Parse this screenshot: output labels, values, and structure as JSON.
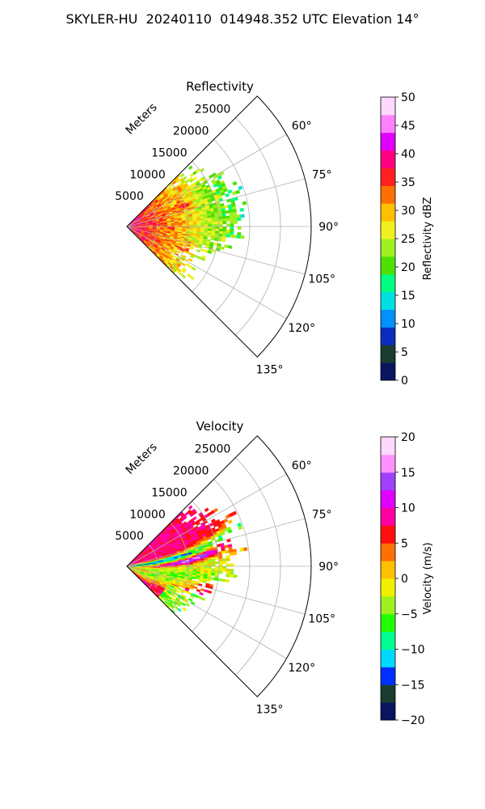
{
  "figure": {
    "suptitle": "SKYLER-HU  20240110  014948.352 UTC Elevation 14°"
  },
  "chart_data": [
    {
      "type": "heatmap",
      "title": "Reflectivity",
      "radial_axis_label": "Meters",
      "radial_ticks": [
        "5000",
        "10000",
        "15000",
        "20000",
        "25000"
      ],
      "radial_tick_values": [
        5000,
        10000,
        15000,
        20000,
        25000
      ],
      "rlim": [
        0,
        30000
      ],
      "angular_ticks": [
        "60°",
        "75°",
        "90°",
        "105°",
        "120°",
        "135°"
      ],
      "angular_tick_values": [
        60,
        75,
        90,
        105,
        120,
        135
      ],
      "theta_range_deg": [
        45,
        135
      ],
      "grid": true,
      "colorbar": {
        "label": "Reflectivity dBZ",
        "ticks": [
          "0",
          "5",
          "10",
          "15",
          "20",
          "25",
          "30",
          "35",
          "40",
          "45",
          "50"
        ],
        "tick_values": [
          0,
          5,
          10,
          15,
          20,
          25,
          30,
          35,
          40,
          45,
          50
        ],
        "vmin": 0,
        "vmax": 50,
        "colors": [
          "#0a1560",
          "#1a3d30",
          "#0c2cc0",
          "#0090ff",
          "#00e0e0",
          "#00ff80",
          "#50e000",
          "#a0f020",
          "#f0f020",
          "#ffc000",
          "#ff7000",
          "#ff2020",
          "#ff0080",
          "#e000ff",
          "#ff80ff",
          "#ffd8ff"
        ]
      },
      "range_extent_m_approx": 19000,
      "field_description": "Reflectivity 30-40 dBZ near the radar (red/orange, with magenta cores up to ~42 dBZ around 10000 m), decreasing to 15-25 dBZ (green/yellow) at the outer edge near 15000-19000 m"
    },
    {
      "type": "heatmap",
      "title": "Velocity",
      "radial_axis_label": "Meters",
      "radial_ticks": [
        "5000",
        "10000",
        "15000",
        "20000",
        "25000"
      ],
      "radial_tick_values": [
        5000,
        10000,
        15000,
        20000,
        25000
      ],
      "rlim": [
        0,
        30000
      ],
      "angular_ticks": [
        "60°",
        "75°",
        "90°",
        "105°",
        "120°",
        "135°"
      ],
      "angular_tick_values": [
        60,
        75,
        90,
        105,
        120,
        135
      ],
      "theta_range_deg": [
        45,
        135
      ],
      "grid": true,
      "colorbar": {
        "label": "Velocity (m/s)",
        "ticks": [
          "−20",
          "−15",
          "−10",
          "−5",
          "0",
          "5",
          "10",
          "15",
          "20"
        ],
        "tick_values": [
          -20,
          -15,
          -10,
          -5,
          0,
          5,
          10,
          15,
          20
        ],
        "vmin": -20,
        "vmax": 20,
        "colors": [
          "#0a1560",
          "#1a3d30",
          "#0030ff",
          "#00d8ff",
          "#00ff90",
          "#20ff00",
          "#a0f020",
          "#f0f000",
          "#ffc000",
          "#ff7000",
          "#ff1010",
          "#ff00a0",
          "#e000ff",
          "#a040ff",
          "#ff90ff",
          "#ffd8ff"
        ]
      },
      "range_extent_m_approx": 19000,
      "field_description": "Positive velocities 5-10 m/s (orange/red) in the northern part of the sector, negative velocities -5 to -15 m/s (green/cyan) along a band near 80-90°, strong positive 10-17 m/s (magenta/pink) band near 95-100°, yellow/orange to the south"
    }
  ]
}
